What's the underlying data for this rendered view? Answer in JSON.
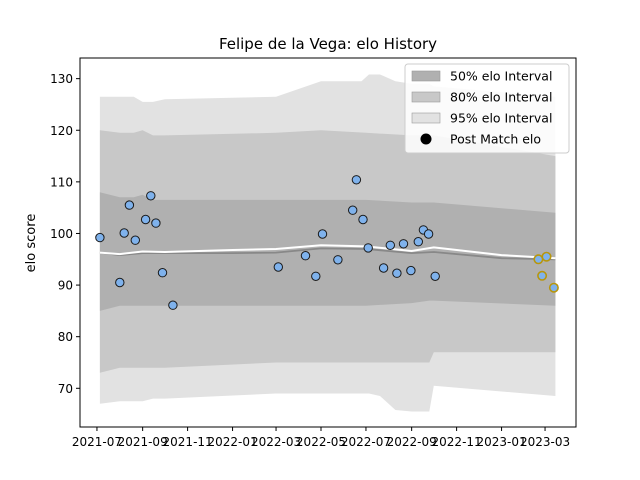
{
  "chart_data": {
    "type": "scatter",
    "title": "Felipe de la Vega: elo History",
    "xlabel": "",
    "ylabel": "elo score",
    "x_range": [
      "2021-06-08",
      "2023-04-12"
    ],
    "ylim": [
      62.5,
      134
    ],
    "grid": false,
    "legend_placement": "top-right",
    "x_tick_labels": [
      "2021-07",
      "2021-09",
      "2021-11",
      "2022-01",
      "2022-03",
      "2022-05",
      "2022-07",
      "2022-09",
      "2022-11",
      "2023-01",
      "2023-03"
    ],
    "x_ticks": [
      "2021-07-01",
      "2021-09-01",
      "2021-11-01",
      "2022-01-01",
      "2022-03-01",
      "2022-05-01",
      "2022-07-01",
      "2022-09-01",
      "2022-11-01",
      "2023-01-01",
      "2023-03-01"
    ],
    "y_ticks": [
      70,
      80,
      90,
      100,
      110,
      120,
      130
    ],
    "colors": {
      "band50": "#b0b0b0",
      "band80": "#c8c8c8",
      "band95": "#e2e2e2",
      "median": "#888888",
      "mean": "#ffffff",
      "point_fill": "#7fb2ec",
      "point_edge": "#1a1a1a",
      "recent_fill": "#7fb2ec",
      "recent_edge": "#b8960c"
    },
    "series": [
      {
        "name": "50% elo Interval",
        "kind": "band",
        "x": [
          "2021-07-05",
          "2021-08-01",
          "2021-08-20",
          "2021-09-01",
          "2021-09-15",
          "2021-10-01",
          "2022-03-01",
          "2022-05-01",
          "2022-07-01",
          "2022-09-01",
          "2022-09-25",
          "2022-10-01",
          "2023-03-15"
        ],
        "upper": [
          108,
          107,
          107,
          107.5,
          106.5,
          106.5,
          106.5,
          106.5,
          106.5,
          106,
          106,
          106,
          104
        ],
        "lower": [
          85,
          86,
          86,
          86,
          86,
          86,
          86,
          86,
          86,
          86.5,
          87,
          87,
          86
        ]
      },
      {
        "name": "80% elo Interval",
        "kind": "band",
        "x": [
          "2021-07-05",
          "2021-08-01",
          "2021-08-20",
          "2021-09-01",
          "2021-09-15",
          "2021-10-01",
          "2022-03-01",
          "2022-05-01",
          "2022-07-01",
          "2022-09-01",
          "2022-09-25",
          "2022-10-01",
          "2023-03-15"
        ],
        "upper": [
          120,
          119.5,
          119.5,
          120,
          119,
          119,
          119.5,
          120,
          119.5,
          119,
          119,
          119,
          115
        ],
        "lower": [
          73,
          74,
          74,
          74,
          74,
          74,
          75,
          75,
          75,
          75,
          75,
          77,
          77
        ]
      },
      {
        "name": "95% elo Interval",
        "kind": "band",
        "x": [
          "2021-07-05",
          "2021-08-01",
          "2021-08-20",
          "2021-09-01",
          "2021-09-15",
          "2021-10-01",
          "2022-03-01",
          "2022-05-01",
          "2022-06-25",
          "2022-07-05",
          "2022-07-20",
          "2022-08-10",
          "2022-09-01",
          "2022-09-25",
          "2022-10-01",
          "2023-03-15"
        ],
        "upper": [
          126.5,
          126.5,
          126.5,
          125.5,
          125.5,
          126,
          126.5,
          129.5,
          129.5,
          130.8,
          130.8,
          129.5,
          129,
          129,
          128.5,
          126.5
        ],
        "lower": [
          67,
          67.5,
          67.5,
          67.5,
          68,
          68,
          69,
          69,
          69,
          69,
          68.5,
          65.8,
          65.5,
          65.5,
          70.5,
          68.5
        ]
      },
      {
        "name": "median",
        "kind": "line",
        "x": [
          "2021-07-05",
          "2021-08-01",
          "2021-09-01",
          "2021-10-01",
          "2022-01-01",
          "2022-03-01",
          "2022-05-01",
          "2022-07-01",
          "2022-09-01",
          "2022-10-01",
          "2023-01-01",
          "2023-03-15"
        ],
        "y": [
          96.3,
          95.8,
          96.2,
          96.2,
          96.2,
          96.3,
          97.1,
          97.0,
          96.2,
          96.4,
          95.2,
          95.0
        ]
      },
      {
        "name": "mean",
        "kind": "line",
        "x": [
          "2021-07-05",
          "2021-08-01",
          "2021-09-01",
          "2021-10-01",
          "2022-01-01",
          "2022-03-01",
          "2022-05-01",
          "2022-07-01",
          "2022-09-01",
          "2022-10-01",
          "2023-01-01",
          "2023-03-15"
        ],
        "y": [
          96.3,
          96.0,
          96.5,
          96.4,
          96.8,
          97.0,
          97.7,
          97.5,
          96.6,
          97.3,
          95.8,
          95.2
        ]
      },
      {
        "name": "Post Match elo",
        "kind": "points",
        "x": [
          "2021-07-05",
          "2021-08-01",
          "2021-08-07",
          "2021-08-14",
          "2021-08-22",
          "2021-09-05",
          "2021-09-12",
          "2021-09-19",
          "2021-09-28",
          "2021-10-12",
          "2022-03-04",
          "2022-04-10",
          "2022-04-24",
          "2022-05-03",
          "2022-05-24",
          "2022-06-13",
          "2022-06-18",
          "2022-06-27",
          "2022-07-04",
          "2022-07-25",
          "2022-08-03",
          "2022-08-12",
          "2022-08-21",
          "2022-08-31",
          "2022-09-10",
          "2022-09-17",
          "2022-09-24",
          "2022-10-03",
          "2023-02-20",
          "2023-02-25",
          "2023-03-03",
          "2023-03-13"
        ],
        "y": [
          99.2,
          90.5,
          100.1,
          105.5,
          98.7,
          102.7,
          107.3,
          102.0,
          92.4,
          86.1,
          93.5,
          95.7,
          91.7,
          99.9,
          94.9,
          104.5,
          110.4,
          102.7,
          97.2,
          93.3,
          97.7,
          92.3,
          98.0,
          92.8,
          98.4,
          100.7,
          99.9,
          91.7,
          95.0,
          91.8,
          95.5,
          89.5
        ],
        "recent_from_index": 28
      }
    ]
  },
  "legend": {
    "items": [
      {
        "label": "50% elo Interval",
        "kind": "band",
        "color": "#b0b0b0"
      },
      {
        "label": "80% elo Interval",
        "kind": "band",
        "color": "#c8c8c8"
      },
      {
        "label": "95% elo Interval",
        "kind": "band",
        "color": "#e2e2e2"
      },
      {
        "label": "Post Match elo",
        "kind": "dot",
        "color": "#000000"
      }
    ]
  }
}
